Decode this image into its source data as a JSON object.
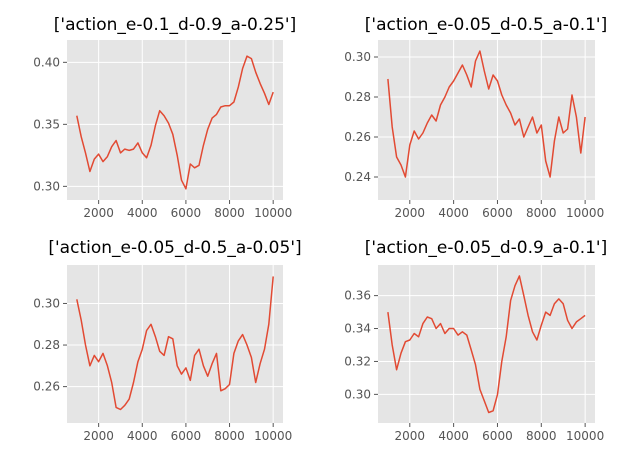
{
  "figure": {
    "background": "#ffffff",
    "panel_bg": "#e5e5e5",
    "grid_color": "#ffffff",
    "line_color": "#e24a33"
  },
  "chart_data": [
    {
      "type": "line",
      "title": "['action_e-0.1_d-0.9_a-0.25']",
      "xlabel": "",
      "ylabel": "",
      "xlim": [
        550,
        10450
      ],
      "ylim": [
        0.289,
        0.418
      ],
      "xticks": [
        2000,
        4000,
        6000,
        8000,
        10000
      ],
      "xtick_labels": [
        "2000",
        "4000",
        "6000",
        "8000",
        "10000"
      ],
      "yticks": [
        0.3,
        0.35,
        0.4
      ],
      "ytick_labels": [
        "0.30",
        "0.35",
        "0.40"
      ],
      "grid": true,
      "series": [
        {
          "x": [
            1000,
            1200,
            1400,
            1600,
            1800,
            2000,
            2200,
            2400,
            2600,
            2800,
            3000,
            3200,
            3400,
            3600,
            3800,
            4000,
            4200,
            4400,
            4600,
            4800,
            5000,
            5200,
            5400,
            5600,
            5800,
            6000,
            6200,
            6400,
            6600,
            6800,
            7000,
            7200,
            7400,
            7600,
            7800,
            8000,
            8200,
            8400,
            8600,
            8800,
            9000,
            9200,
            9400,
            9600,
            9800,
            10000
          ],
          "y": [
            0.357,
            0.34,
            0.327,
            0.312,
            0.322,
            0.326,
            0.32,
            0.324,
            0.332,
            0.337,
            0.327,
            0.33,
            0.329,
            0.33,
            0.335,
            0.327,
            0.323,
            0.333,
            0.349,
            0.361,
            0.357,
            0.351,
            0.342,
            0.325,
            0.305,
            0.298,
            0.318,
            0.315,
            0.317,
            0.333,
            0.346,
            0.355,
            0.358,
            0.364,
            0.365,
            0.365,
            0.368,
            0.38,
            0.395,
            0.405,
            0.403,
            0.392,
            0.383,
            0.375,
            0.366,
            0.376
          ]
        }
      ]
    },
    {
      "type": "line",
      "title": "['action_e-0.05_d-0.5_a-0.1']",
      "xlabel": "",
      "ylabel": "",
      "xlim": [
        550,
        10450
      ],
      "ylim": [
        0.2285,
        0.3085
      ],
      "xticks": [
        2000,
        4000,
        6000,
        8000,
        10000
      ],
      "xtick_labels": [
        "2000",
        "4000",
        "6000",
        "8000",
        "10000"
      ],
      "yticks": [
        0.24,
        0.26,
        0.28,
        0.3
      ],
      "ytick_labels": [
        "0.24",
        "0.26",
        "0.28",
        "0.30"
      ],
      "grid": true,
      "series": [
        {
          "x": [
            1000,
            1200,
            1400,
            1600,
            1800,
            2000,
            2200,
            2400,
            2600,
            2800,
            3000,
            3200,
            3400,
            3600,
            3800,
            4000,
            4200,
            4400,
            4600,
            4800,
            5000,
            5200,
            5400,
            5600,
            5800,
            6000,
            6200,
            6400,
            6600,
            6800,
            7000,
            7200,
            7400,
            7600,
            7800,
            8000,
            8200,
            8400,
            8600,
            8800,
            9000,
            9200,
            9400,
            9600,
            9800,
            10000
          ],
          "y": [
            0.289,
            0.265,
            0.25,
            0.246,
            0.24,
            0.256,
            0.263,
            0.259,
            0.262,
            0.267,
            0.271,
            0.268,
            0.276,
            0.28,
            0.285,
            0.288,
            0.292,
            0.296,
            0.291,
            0.285,
            0.298,
            0.303,
            0.293,
            0.284,
            0.291,
            0.288,
            0.281,
            0.276,
            0.272,
            0.266,
            0.269,
            0.26,
            0.265,
            0.27,
            0.262,
            0.266,
            0.248,
            0.24,
            0.258,
            0.27,
            0.262,
            0.264,
            0.281,
            0.27,
            0.252,
            0.27
          ]
        }
      ]
    },
    {
      "type": "line",
      "title": "['action_e-0.05_d-0.5_a-0.05']",
      "xlabel": "",
      "ylabel": "",
      "xlim": [
        550,
        10450
      ],
      "ylim": [
        0.2425,
        0.3185
      ],
      "xticks": [
        2000,
        4000,
        6000,
        8000,
        10000
      ],
      "xtick_labels": [
        "2000",
        "4000",
        "6000",
        "8000",
        "10000"
      ],
      "yticks": [
        0.26,
        0.28,
        0.3
      ],
      "ytick_labels": [
        "0.26",
        "0.28",
        "0.30"
      ],
      "grid": true,
      "series": [
        {
          "x": [
            1000,
            1200,
            1400,
            1600,
            1800,
            2000,
            2200,
            2400,
            2600,
            2800,
            3000,
            3200,
            3400,
            3600,
            3800,
            4000,
            4200,
            4400,
            4600,
            4800,
            5000,
            5200,
            5400,
            5600,
            5800,
            6000,
            6200,
            6400,
            6600,
            6800,
            7000,
            7200,
            7400,
            7600,
            7800,
            8000,
            8200,
            8400,
            8600,
            8800,
            9000,
            9200,
            9400,
            9600,
            9800,
            10000
          ],
          "y": [
            0.302,
            0.292,
            0.28,
            0.27,
            0.275,
            0.272,
            0.276,
            0.27,
            0.262,
            0.25,
            0.249,
            0.251,
            0.254,
            0.262,
            0.272,
            0.278,
            0.287,
            0.29,
            0.284,
            0.277,
            0.275,
            0.284,
            0.283,
            0.27,
            0.266,
            0.269,
            0.263,
            0.275,
            0.278,
            0.27,
            0.265,
            0.271,
            0.276,
            0.258,
            0.259,
            0.261,
            0.276,
            0.282,
            0.285,
            0.28,
            0.274,
            0.262,
            0.271,
            0.278,
            0.29,
            0.313
          ]
        }
      ]
    },
    {
      "type": "line",
      "title": "['action_e-0.05_d-0.9_a-0.1']",
      "xlabel": "",
      "ylabel": "",
      "xlim": [
        550,
        10450
      ],
      "ylim": [
        0.2826,
        0.3786
      ],
      "xticks": [
        2000,
        4000,
        6000,
        8000,
        10000
      ],
      "xtick_labels": [
        "2000",
        "4000",
        "6000",
        "8000",
        "10000"
      ],
      "yticks": [
        0.3,
        0.32,
        0.34,
        0.36
      ],
      "ytick_labels": [
        "0.30",
        "0.32",
        "0.34",
        "0.36"
      ],
      "grid": true,
      "series": [
        {
          "x": [
            1000,
            1200,
            1400,
            1600,
            1800,
            2000,
            2200,
            2400,
            2600,
            2800,
            3000,
            3200,
            3400,
            3600,
            3800,
            4000,
            4200,
            4400,
            4600,
            4800,
            5000,
            5200,
            5400,
            5600,
            5800,
            6000,
            6200,
            6400,
            6600,
            6800,
            7000,
            7200,
            7400,
            7600,
            7800,
            8000,
            8200,
            8400,
            8600,
            8800,
            9000,
            9200,
            9400,
            9600,
            9800,
            10000
          ],
          "y": [
            0.35,
            0.33,
            0.315,
            0.325,
            0.332,
            0.333,
            0.337,
            0.335,
            0.343,
            0.347,
            0.346,
            0.34,
            0.343,
            0.337,
            0.34,
            0.34,
            0.336,
            0.338,
            0.336,
            0.327,
            0.318,
            0.303,
            0.296,
            0.289,
            0.29,
            0.3,
            0.32,
            0.335,
            0.357,
            0.366,
            0.372,
            0.36,
            0.348,
            0.338,
            0.333,
            0.342,
            0.35,
            0.348,
            0.355,
            0.358,
            0.355,
            0.345,
            0.34,
            0.344,
            0.346,
            0.348
          ]
        }
      ]
    }
  ]
}
